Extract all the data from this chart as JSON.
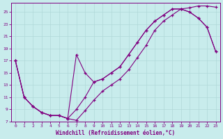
{
  "xlabel": "Windchill (Refroidissement éolien,°C)",
  "bg_color": "#c8ecec",
  "line_color": "#800080",
  "grid_color": "#b0d8d8",
  "xlim": [
    -0.5,
    23.5
  ],
  "ylim": [
    7,
    26.5
  ],
  "xticks": [
    0,
    1,
    2,
    3,
    4,
    5,
    6,
    7,
    8,
    9,
    10,
    11,
    12,
    13,
    14,
    15,
    16,
    17,
    18,
    19,
    20,
    21,
    22,
    23
  ],
  "yticks": [
    7,
    9,
    11,
    13,
    15,
    17,
    19,
    21,
    23,
    25
  ],
  "line1_x": [
    0,
    1,
    2,
    3,
    4,
    5,
    6,
    7,
    8,
    9,
    10,
    11,
    12,
    13,
    14,
    15,
    16,
    17,
    18,
    19,
    20,
    21,
    22,
    23
  ],
  "line1_y": [
    17.0,
    11.0,
    9.5,
    8.5,
    8.0,
    8.0,
    7.5,
    7.2,
    8.8,
    10.5,
    12.0,
    13.0,
    14.0,
    15.5,
    17.5,
    19.5,
    22.0,
    23.5,
    24.5,
    25.5,
    25.7,
    26.0,
    26.0,
    25.8
  ],
  "line2_x": [
    0,
    1,
    2,
    3,
    4,
    5,
    6,
    7,
    8,
    9,
    10,
    11,
    12,
    13,
    14,
    15,
    16,
    17,
    18,
    19,
    20,
    21,
    22,
    23
  ],
  "line2_y": [
    17.0,
    11.0,
    9.5,
    8.5,
    8.0,
    8.0,
    7.5,
    18.0,
    15.0,
    13.5,
    14.0,
    15.0,
    16.0,
    18.0,
    20.0,
    22.0,
    23.5,
    24.5,
    25.5,
    25.5,
    25.0,
    24.0,
    22.5,
    18.5
  ],
  "line3_x": [
    0,
    1,
    2,
    3,
    4,
    5,
    6,
    7,
    8,
    9,
    10,
    11,
    12,
    13,
    14,
    15,
    16,
    17,
    18,
    19,
    20,
    21,
    22,
    23
  ],
  "line3_y": [
    17.0,
    11.0,
    9.5,
    8.5,
    8.0,
    8.0,
    7.5,
    9.0,
    11.0,
    13.5,
    14.0,
    15.0,
    16.0,
    18.0,
    20.0,
    22.0,
    23.5,
    24.5,
    25.5,
    25.5,
    25.0,
    24.0,
    22.5,
    18.5
  ]
}
